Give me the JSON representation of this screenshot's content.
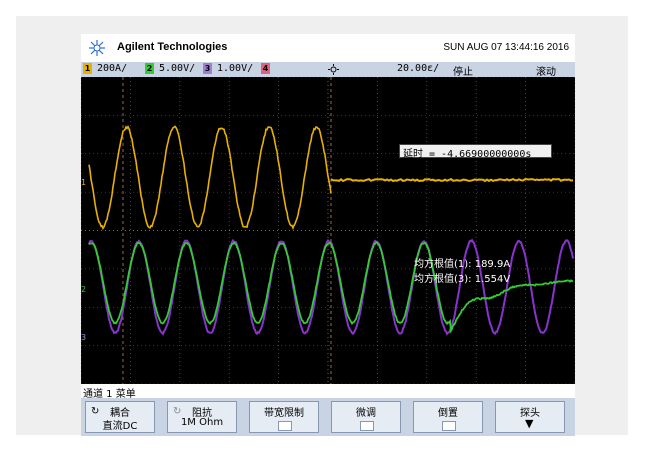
{
  "brand": "Agilent Technologies",
  "datetime": "SUN AUG 07 13:44:16 2016",
  "status": {
    "ch1": "1",
    "ch1_scale": "200A/",
    "ch2": "2",
    "ch2_scale": "5.00V/",
    "ch3": "3",
    "ch3_scale": "1.00V/",
    "ch4": "4",
    "timebase": "20.00ɛ/",
    "run_state": "停止",
    "mode": "滚动"
  },
  "delay": "延时 = -4.66900000000s",
  "measurements": [
    "均方根值(1): 189.9A",
    "均方根值(3): 1.554V"
  ],
  "channel_markers": [
    "1",
    "2",
    "3"
  ],
  "menu_title": "通道 1 菜单",
  "softkeys": [
    {
      "line1": "耦合",
      "line2": "直流DC"
    },
    {
      "line1": "阻抗",
      "line2": "1M Ohm"
    },
    {
      "line1": "带宽限制",
      "line2": ""
    },
    {
      "line1": "微调",
      "line2": ""
    },
    {
      "line1": "倒置",
      "line2": ""
    },
    {
      "line1": "探头",
      "line2": ""
    }
  ],
  "colors": {
    "ch1": "#e8b100",
    "ch2": "#33cc33",
    "ch3": "#8833cc",
    "screen_bg": "#000000",
    "grid": "#6a6a6a"
  }
}
